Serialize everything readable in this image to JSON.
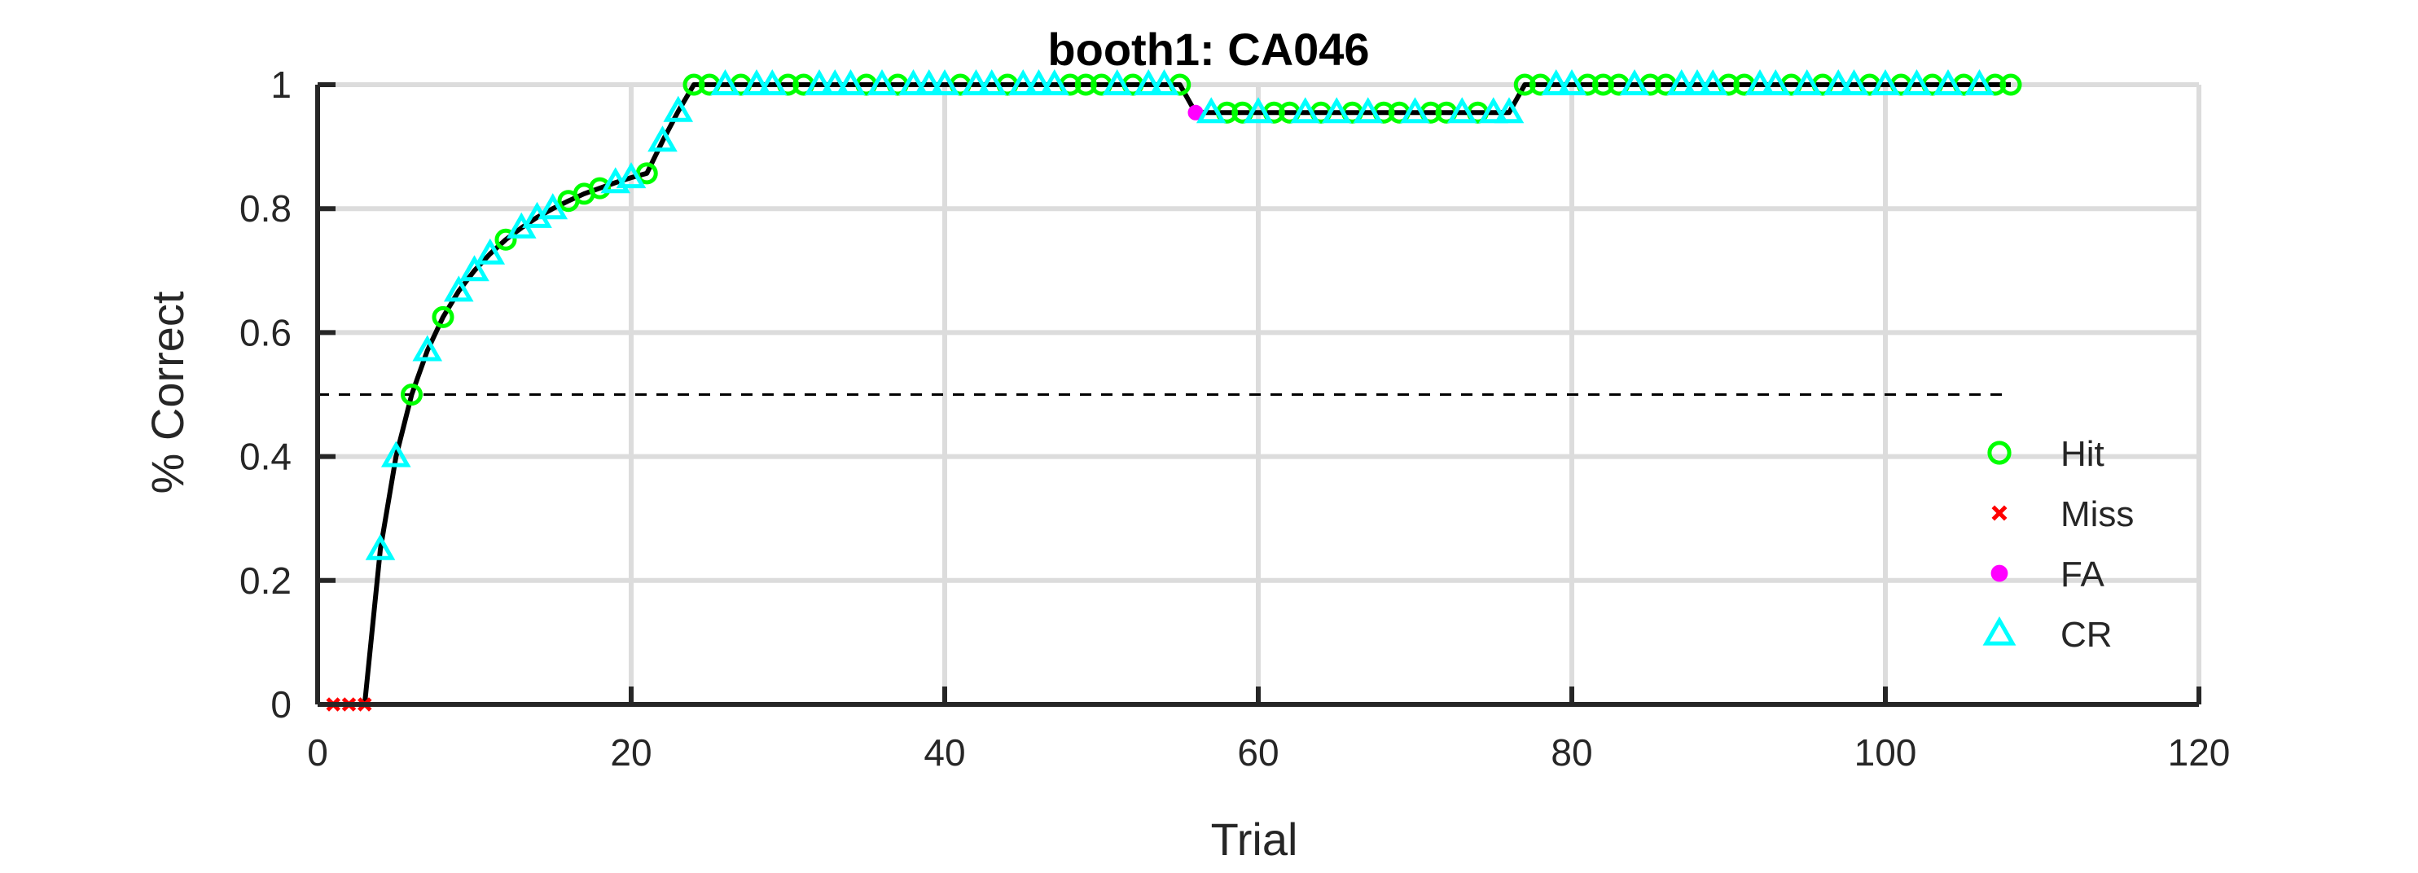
{
  "chart_data": {
    "type": "scatter",
    "title": "booth1: CA046",
    "xlabel": "Trial",
    "ylabel": "% Correct",
    "xlim": [
      0,
      120
    ],
    "ylim": [
      0,
      1
    ],
    "xticks": [
      0,
      20,
      40,
      60,
      80,
      100,
      120
    ],
    "yticks": [
      0,
      0.2,
      0.4,
      0.6,
      0.8,
      1
    ],
    "x_tick_labels": [
      "0",
      "20",
      "40",
      "60",
      "80",
      "100",
      "120"
    ],
    "y_tick_labels": [
      "0",
      "0.2",
      "0.4",
      "0.6",
      "0.8",
      "1"
    ],
    "grid": true,
    "legend_position": "lower-right",
    "reference_line": {
      "y": 0.5,
      "x_range": [
        0,
        108
      ],
      "style": "dashed"
    },
    "performance_line": {
      "x": [
        1,
        2,
        3,
        4,
        5,
        6,
        7,
        8,
        9,
        10,
        11,
        12,
        13,
        14,
        15,
        16,
        17,
        18,
        19,
        20,
        21,
        22,
        23,
        24,
        25,
        55,
        56,
        57,
        76,
        77,
        108
      ],
      "y": [
        0,
        0,
        0,
        0.25,
        0.4,
        0.5,
        0.571,
        0.625,
        0.667,
        0.7,
        0.727,
        0.75,
        0.769,
        0.786,
        0.8,
        0.8125,
        0.824,
        0.833,
        0.842,
        0.85,
        0.857,
        0.909,
        0.957,
        1,
        1,
        1,
        0.955,
        0.955,
        0.955,
        1,
        1
      ]
    },
    "series": [
      {
        "name": "Hit",
        "marker": "circle",
        "color": "#00ff00",
        "x": [
          6,
          8,
          12,
          16,
          17,
          18,
          21,
          24,
          25,
          27,
          30,
          31,
          35,
          37,
          41,
          44,
          48,
          49,
          50,
          52,
          55,
          58,
          59,
          61,
          62,
          64,
          66,
          68,
          69,
          71,
          72,
          74,
          77,
          78,
          81,
          82,
          83,
          85,
          86,
          90,
          91,
          94,
          96,
          99,
          101,
          103,
          105,
          107,
          108
        ],
        "y": [
          0.5,
          0.625,
          0.75,
          0.8125,
          0.824,
          0.833,
          0.857,
          1,
          1,
          1,
          1,
          1,
          1,
          1,
          1,
          1,
          1,
          1,
          1,
          1,
          1,
          0.955,
          0.955,
          0.955,
          0.955,
          0.955,
          0.955,
          0.955,
          0.955,
          0.955,
          0.955,
          0.955,
          1,
          1,
          1,
          1,
          1,
          1,
          1,
          1,
          1,
          1,
          1,
          1,
          1,
          1,
          1,
          1,
          1
        ]
      },
      {
        "name": "Miss",
        "marker": "x",
        "color": "#ff0000",
        "x": [
          1,
          2,
          3
        ],
        "y": [
          0,
          0,
          0
        ]
      },
      {
        "name": "FA",
        "marker": "dot",
        "color": "#ff00ff",
        "x": [
          56
        ],
        "y": [
          0.955
        ]
      },
      {
        "name": "CR",
        "marker": "triangle",
        "color": "#00ffff",
        "x": [
          4,
          5,
          7,
          9,
          10,
          11,
          13,
          14,
          15,
          19,
          20,
          22,
          23,
          26,
          28,
          29,
          32,
          33,
          34,
          36,
          38,
          39,
          40,
          42,
          43,
          45,
          46,
          47,
          51,
          53,
          54,
          57,
          60,
          63,
          65,
          67,
          70,
          73,
          75,
          76,
          79,
          80,
          84,
          87,
          88,
          89,
          92,
          93,
          95,
          97,
          98,
          100,
          102,
          104,
          106
        ],
        "y": [
          0.25,
          0.4,
          0.571,
          0.667,
          0.7,
          0.727,
          0.769,
          0.786,
          0.8,
          0.842,
          0.85,
          0.909,
          0.957,
          1,
          1,
          1,
          1,
          1,
          1,
          1,
          1,
          1,
          1,
          1,
          1,
          1,
          1,
          1,
          1,
          1,
          1,
          0.955,
          0.955,
          0.955,
          0.955,
          0.955,
          0.955,
          0.955,
          0.955,
          0.955,
          1,
          1,
          1,
          1,
          1,
          1,
          1,
          1,
          1,
          1,
          1,
          1,
          1,
          1,
          1
        ]
      }
    ]
  }
}
